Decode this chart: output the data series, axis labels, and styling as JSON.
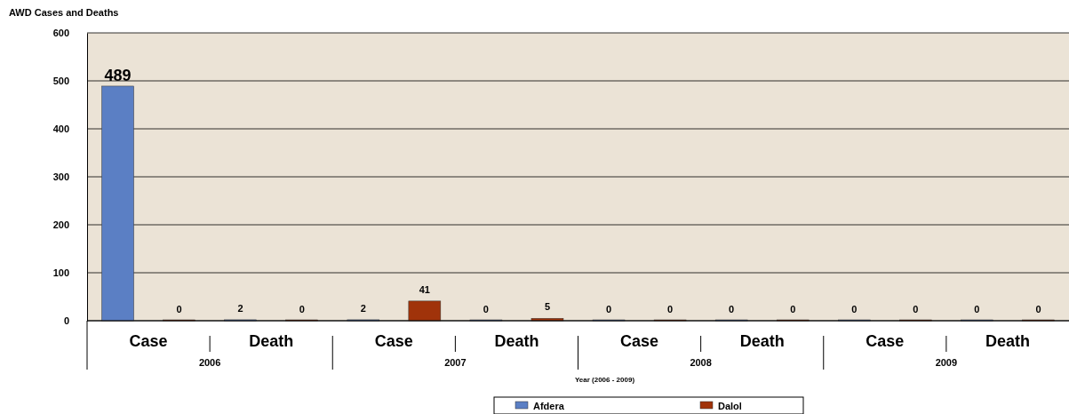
{
  "chart_data": {
    "type": "bar",
    "title": "AWD Cases and Deaths",
    "xlabel": "Year (2006 - 2009)",
    "categories": [
      "Case",
      "Death",
      "Case",
      "Death",
      "Case",
      "Death",
      "Case",
      "Death"
    ],
    "series": [
      {
        "name": "Afdera",
        "color": "#5b7fc4",
        "values": [
          489,
          2,
          2,
          0,
          0,
          0,
          0,
          0
        ]
      },
      {
        "name": "Dalol",
        "color": "#a0330a",
        "values": [
          0,
          0,
          41,
          5,
          0,
          0,
          0,
          0
        ]
      }
    ],
    "annotations": [
      "2006",
      "2007",
      "2008",
      "2009"
    ],
    "ylim": [
      0,
      600
    ],
    "yticks": [
      0,
      100,
      200,
      300,
      400,
      500,
      600
    ],
    "grid": "y",
    "legend": "bottom",
    "data_labels": true
  }
}
